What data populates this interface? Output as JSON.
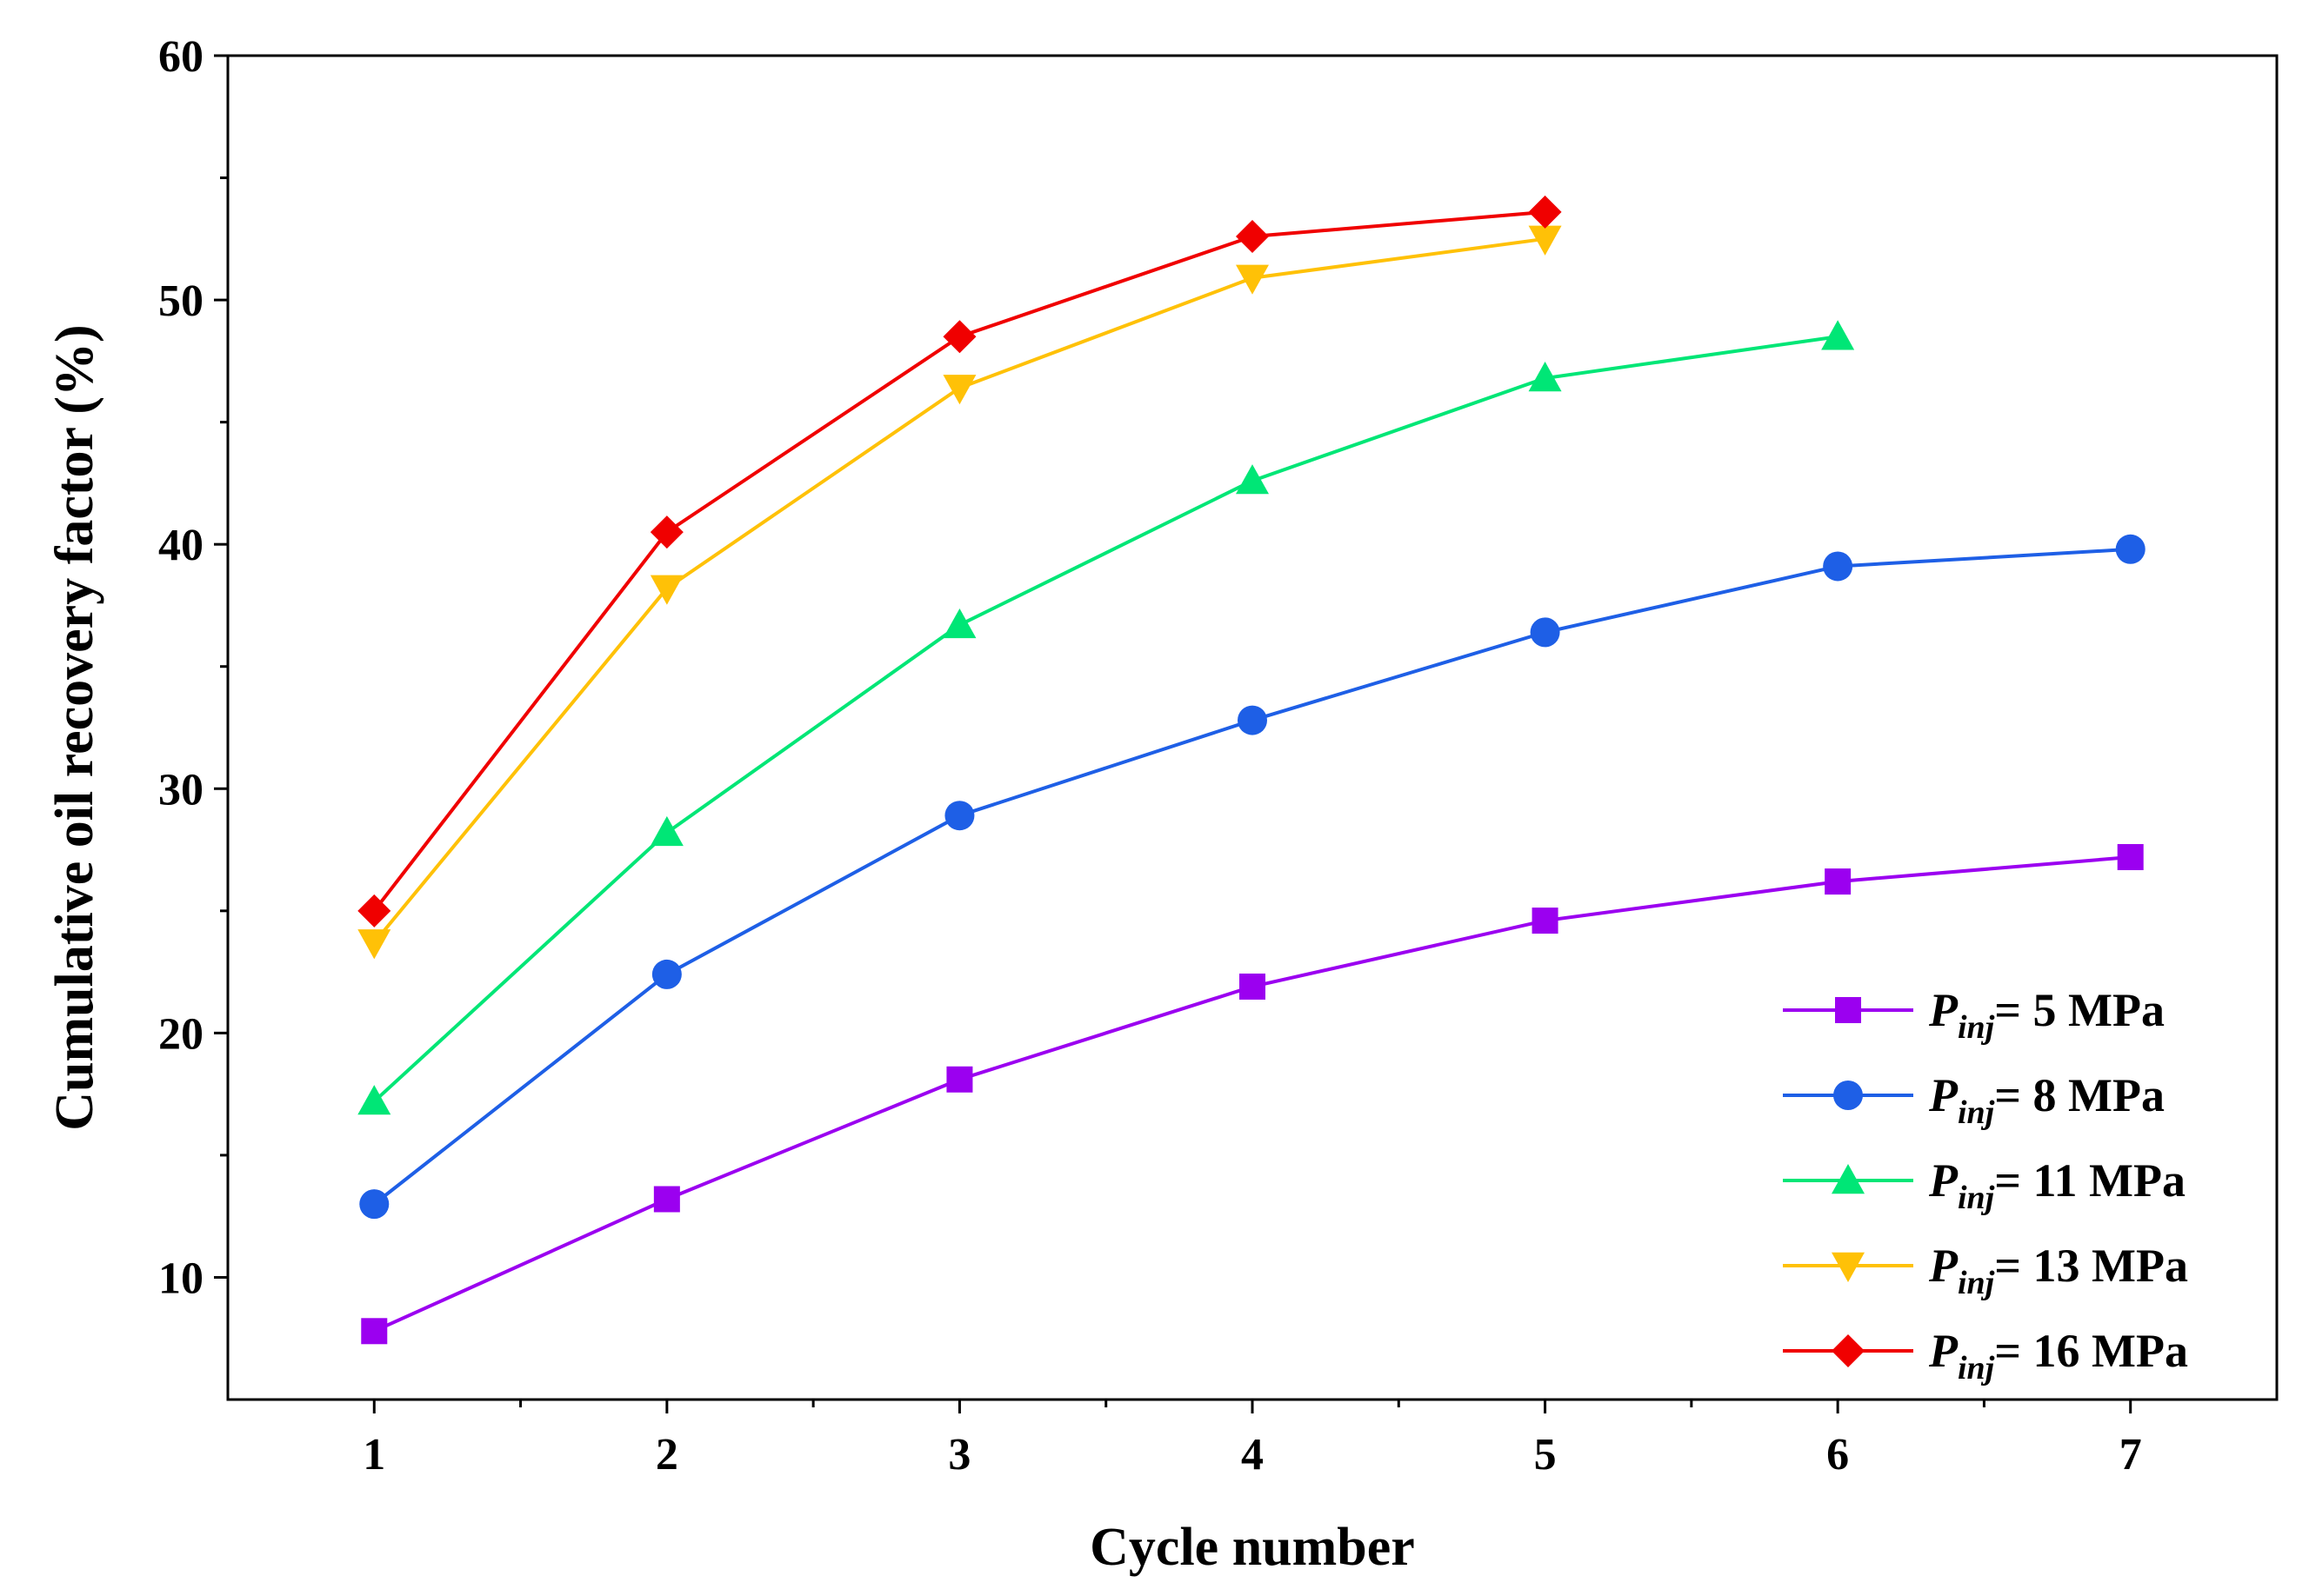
{
  "chart_data": {
    "type": "line",
    "title": "",
    "xlabel": "Cycle number",
    "ylabel": "Cumulative oil recovery factor (%)",
    "xlim": [
      0.5,
      7.5
    ],
    "ylim": [
      5,
      60
    ],
    "x_ticks": [
      1,
      2,
      3,
      4,
      5,
      6,
      7
    ],
    "y_ticks": [
      10,
      20,
      30,
      40,
      50,
      60
    ],
    "grid": false,
    "legend_position": "bottom-right",
    "legend_label_prefix": "P",
    "legend_label_subscript": "inj",
    "series": [
      {
        "name": "P_inj= 5 MPa",
        "label_suffix": "= 5 MPa",
        "color": "#9B00F0",
        "marker": "square",
        "x": [
          1,
          2,
          3,
          4,
          5,
          6,
          7
        ],
        "values": [
          7.8,
          13.2,
          18.1,
          21.9,
          24.6,
          26.2,
          27.2
        ]
      },
      {
        "name": "P_inj= 8 MPa",
        "label_suffix": "= 8 MPa",
        "color": "#1E5FE6",
        "marker": "circle",
        "x": [
          1,
          2,
          3,
          4,
          5,
          6,
          7
        ],
        "values": [
          13.0,
          22.4,
          28.9,
          32.8,
          36.4,
          39.1,
          39.8
        ]
      },
      {
        "name": "P_inj= 11 MPa",
        "label_suffix": "= 11 MPa",
        "color": "#00E676",
        "marker": "triangle-up",
        "x": [
          1,
          2,
          3,
          4,
          5,
          6
        ],
        "values": [
          17.2,
          28.2,
          36.7,
          42.6,
          46.8,
          48.5
        ]
      },
      {
        "name": "P_inj= 13 MPa",
        "label_suffix": "= 13 MPa",
        "color": "#FFC107",
        "marker": "triangle-down",
        "x": [
          1,
          2,
          3,
          4,
          5
        ],
        "values": [
          23.7,
          38.2,
          46.4,
          50.9,
          52.5
        ]
      },
      {
        "name": "P_inj= 16 MPa",
        "label_suffix": "= 16 MPa",
        "color": "#F00000",
        "marker": "diamond",
        "x": [
          1,
          2,
          3,
          4,
          5
        ],
        "values": [
          25.0,
          40.5,
          48.5,
          52.6,
          53.6
        ]
      }
    ]
  }
}
